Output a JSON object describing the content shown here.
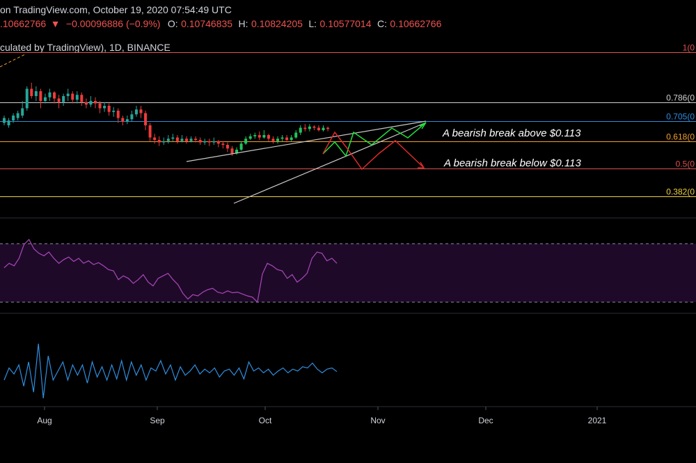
{
  "header": {
    "line1": "on TradingView.com, October 19, 2020 07:54:49 UTC",
    "price": ".10662766",
    "change": "−0.00096886 (−0.9%)",
    "open_label": "O:",
    "open": "0.10746835",
    "high_label": "H:",
    "high": "0.10824205",
    "low_label": "L:",
    "low": "0.10577014",
    "close_label": "C:",
    "close": "0.10662766",
    "symbol_line": "culated by TradingView), 1D, BINANCE"
  },
  "annotations": {
    "above": "A bearish break above $0.113",
    "below": "A bearish break below $0.113"
  },
  "colors": {
    "up": "#26a69a",
    "upBright": "#22c55e",
    "down": "#ef3b3b",
    "rsi": "#ab47bc",
    "osc": "#2f8fe0",
    "wedge": "#c8c8c8"
  },
  "chart_data": {
    "type": "candlestick",
    "x_axis": [
      "Aug",
      "Sep",
      "Oct",
      "Nov",
      "Dec",
      "2021"
    ],
    "fib_levels": [
      {
        "label": "1(0",
        "value": 1,
        "color": "#e05050"
      },
      {
        "label": "0.786(0",
        "value": 0.786,
        "color": "#d0d0d0"
      },
      {
        "label": "0.705(0",
        "value": 0.705,
        "color": "#2d8de0"
      },
      {
        "label": "0.618(0",
        "value": 0.618,
        "color": "#f0a030"
      },
      {
        "label": "0.5(0",
        "value": 0.5,
        "color": "#e05050"
      },
      {
        "label": "0.382(0",
        "value": 0.382,
        "color": "#f0d040"
      }
    ],
    "candles_relative": [
      [
        0.62,
        0.66,
        0.6,
        0.68
      ],
      [
        0.6,
        0.64,
        0.58,
        0.66
      ],
      [
        0.64,
        0.68,
        0.62,
        0.7
      ],
      [
        0.66,
        0.7,
        0.64,
        0.72
      ],
      [
        0.68,
        0.74,
        0.66,
        0.8
      ],
      [
        0.74,
        0.9,
        0.72,
        0.92
      ],
      [
        0.9,
        0.84,
        0.82,
        0.95
      ],
      [
        0.84,
        0.88,
        0.8,
        0.92
      ],
      [
        0.88,
        0.8,
        0.74,
        0.9
      ],
      [
        0.8,
        0.83,
        0.78,
        0.86
      ],
      [
        0.83,
        0.87,
        0.8,
        0.9
      ],
      [
        0.87,
        0.82,
        0.78,
        0.88
      ],
      [
        0.82,
        0.79,
        0.74,
        0.85
      ],
      [
        0.79,
        0.84,
        0.76,
        0.86
      ],
      [
        0.84,
        0.86,
        0.8,
        0.9
      ],
      [
        0.86,
        0.81,
        0.78,
        0.88
      ],
      [
        0.81,
        0.85,
        0.78,
        0.88
      ],
      [
        0.85,
        0.79,
        0.76,
        0.87
      ],
      [
        0.79,
        0.77,
        0.74,
        0.82
      ],
      [
        0.77,
        0.8,
        0.75,
        0.84
      ],
      [
        0.8,
        0.78,
        0.74,
        0.83
      ],
      [
        0.78,
        0.74,
        0.7,
        0.8
      ],
      [
        0.74,
        0.76,
        0.71,
        0.79
      ],
      [
        0.76,
        0.71,
        0.68,
        0.78
      ],
      [
        0.71,
        0.72,
        0.67,
        0.75
      ],
      [
        0.72,
        0.66,
        0.62,
        0.74
      ],
      [
        0.66,
        0.63,
        0.6,
        0.68
      ],
      [
        0.63,
        0.65,
        0.61,
        0.68
      ],
      [
        0.65,
        0.69,
        0.63,
        0.72
      ],
      [
        0.69,
        0.73,
        0.67,
        0.76
      ],
      [
        0.73,
        0.7,
        0.66,
        0.76
      ],
      [
        0.7,
        0.6,
        0.56,
        0.72
      ],
      [
        0.6,
        0.5,
        0.47,
        0.62
      ],
      [
        0.5,
        0.48,
        0.45,
        0.53
      ],
      [
        0.48,
        0.46,
        0.43,
        0.51
      ],
      [
        0.46,
        0.47,
        0.44,
        0.5
      ],
      [
        0.47,
        0.49,
        0.45,
        0.52
      ],
      [
        0.49,
        0.5,
        0.47,
        0.53
      ],
      [
        0.5,
        0.47,
        0.45,
        0.52
      ],
      [
        0.47,
        0.49,
        0.46,
        0.52
      ],
      [
        0.49,
        0.47,
        0.45,
        0.51
      ],
      [
        0.47,
        0.49,
        0.46,
        0.51
      ],
      [
        0.49,
        0.48,
        0.46,
        0.51
      ],
      [
        0.48,
        0.46,
        0.44,
        0.5
      ],
      [
        0.46,
        0.47,
        0.44,
        0.49
      ],
      [
        0.47,
        0.46,
        0.43,
        0.49
      ],
      [
        0.46,
        0.47,
        0.44,
        0.5
      ],
      [
        0.47,
        0.45,
        0.42,
        0.48
      ],
      [
        0.45,
        0.44,
        0.41,
        0.47
      ],
      [
        0.44,
        0.41,
        0.38,
        0.46
      ],
      [
        0.41,
        0.37,
        0.35,
        0.43
      ],
      [
        0.37,
        0.4,
        0.36,
        0.42
      ],
      [
        0.4,
        0.45,
        0.39,
        0.47
      ],
      [
        0.45,
        0.49,
        0.44,
        0.51
      ],
      [
        0.49,
        0.51,
        0.48,
        0.53
      ],
      [
        0.51,
        0.52,
        0.49,
        0.54
      ],
      [
        0.52,
        0.5,
        0.48,
        0.55
      ],
      [
        0.5,
        0.52,
        0.49,
        0.56
      ],
      [
        0.52,
        0.49,
        0.47,
        0.53
      ],
      [
        0.49,
        0.47,
        0.45,
        0.51
      ],
      [
        0.47,
        0.49,
        0.45,
        0.51
      ],
      [
        0.49,
        0.5,
        0.47,
        0.52
      ],
      [
        0.5,
        0.48,
        0.46,
        0.52
      ],
      [
        0.48,
        0.5,
        0.47,
        0.52
      ],
      [
        0.5,
        0.54,
        0.49,
        0.56
      ],
      [
        0.54,
        0.58,
        0.52,
        0.6
      ],
      [
        0.58,
        0.57,
        0.55,
        0.61
      ],
      [
        0.57,
        0.59,
        0.55,
        0.61
      ],
      [
        0.59,
        0.58,
        0.56,
        0.6
      ],
      [
        0.58,
        0.56,
        0.55,
        0.6
      ],
      [
        0.56,
        0.58,
        0.55,
        0.6
      ],
      [
        0.58,
        0.57,
        0.55,
        0.59
      ]
    ],
    "rsi_relative": [
      0.55,
      0.62,
      0.58,
      0.7,
      0.92,
      1.0,
      0.85,
      0.78,
      0.74,
      0.8,
      0.7,
      0.62,
      0.68,
      0.72,
      0.65,
      0.7,
      0.62,
      0.66,
      0.6,
      0.63,
      0.58,
      0.52,
      0.5,
      0.36,
      0.42,
      0.38,
      0.3,
      0.36,
      0.44,
      0.32,
      0.26,
      0.38,
      0.42,
      0.46,
      0.36,
      0.28,
      0.14,
      0.05,
      0.12,
      0.1,
      0.16,
      0.2,
      0.22,
      0.16,
      0.14,
      0.18,
      0.15,
      0.16,
      0.13,
      0.1,
      0.08,
      0.0,
      0.45,
      0.62,
      0.58,
      0.52,
      0.5,
      0.38,
      0.44,
      0.32,
      0.38,
      0.46,
      0.7,
      0.8,
      0.78,
      0.66,
      0.7,
      0.62
    ],
    "osc_relative": [
      0.3,
      0.5,
      0.4,
      0.55,
      0.2,
      0.6,
      0.1,
      0.9,
      0.0,
      0.7,
      0.3,
      0.45,
      0.6,
      0.3,
      0.55,
      0.38,
      0.55,
      0.25,
      0.6,
      0.35,
      0.52,
      0.3,
      0.55,
      0.32,
      0.62,
      0.3,
      0.6,
      0.38,
      0.55,
      0.3,
      0.5,
      0.45,
      0.62,
      0.4,
      0.55,
      0.3,
      0.52,
      0.38,
      0.45,
      0.55,
      0.4,
      0.48,
      0.42,
      0.5,
      0.35,
      0.45,
      0.48,
      0.38,
      0.5,
      0.32,
      0.6,
      0.45,
      0.5,
      0.42,
      0.48,
      0.38,
      0.45,
      0.5,
      0.42,
      0.48,
      0.45,
      0.52,
      0.5,
      0.58,
      0.48,
      0.42,
      0.48,
      0.5,
      0.44
    ]
  }
}
